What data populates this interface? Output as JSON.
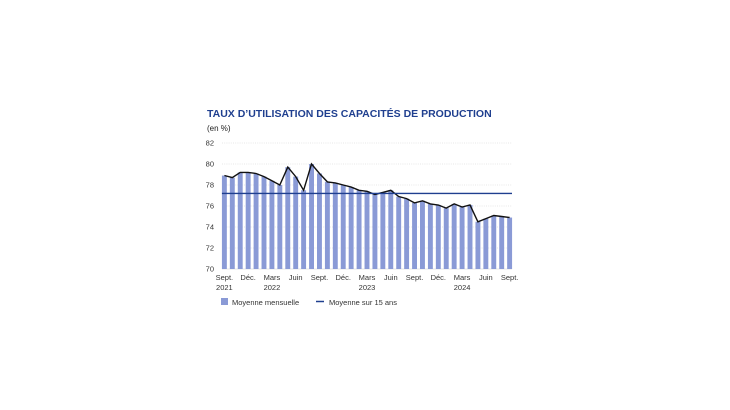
{
  "chart_data": {
    "type": "bar",
    "title": "TAUX D’UTILISATION DES CAPACITÉS DE PRODUCTION",
    "unit": "(en %)",
    "ylim": [
      70,
      82
    ],
    "yticks": [
      70,
      72,
      74,
      76,
      78,
      80,
      82
    ],
    "grid": true,
    "legend_position": "bottom-left",
    "colors": {
      "bars": "#8a9ad6",
      "line": "#111111",
      "average": "#1f3f8f",
      "title": "#1f3f8f"
    },
    "xtick_labels": [
      {
        "index": 0,
        "line1": "Sept.",
        "line2": "2021"
      },
      {
        "index": 3,
        "line1": "Déc.",
        "line2": ""
      },
      {
        "index": 6,
        "line1": "Mars",
        "line2": "2022"
      },
      {
        "index": 9,
        "line1": "Juin",
        "line2": ""
      },
      {
        "index": 12,
        "line1": "Sept.",
        "line2": ""
      },
      {
        "index": 15,
        "line1": "Déc.",
        "line2": ""
      },
      {
        "index": 18,
        "line1": "Mars",
        "line2": "2023"
      },
      {
        "index": 21,
        "line1": "Juin",
        "line2": ""
      },
      {
        "index": 24,
        "line1": "Sept.",
        "line2": ""
      },
      {
        "index": 27,
        "line1": "Déc.",
        "line2": ""
      },
      {
        "index": 30,
        "line1": "Mars",
        "line2": "2024"
      },
      {
        "index": 33,
        "line1": "Juin",
        "line2": ""
      },
      {
        "index": 36,
        "line1": "Sept.",
        "line2": ""
      }
    ],
    "series": [
      {
        "name": "Moyenne mensuelle",
        "values": [
          78.9,
          78.7,
          79.2,
          79.2,
          79.1,
          78.8,
          78.4,
          78.0,
          79.7,
          78.8,
          77.5,
          80.0,
          79.1,
          78.3,
          78.2,
          78.0,
          77.8,
          77.5,
          77.4,
          77.1,
          77.3,
          77.5,
          76.9,
          76.7,
          76.3,
          76.5,
          76.2,
          76.1,
          75.8,
          76.2,
          75.9,
          76.1,
          74.5,
          74.8,
          75.1,
          75.0,
          74.9
        ]
      },
      {
        "name": "Moyenne sur 15 ans",
        "value": 77.2
      }
    ]
  }
}
